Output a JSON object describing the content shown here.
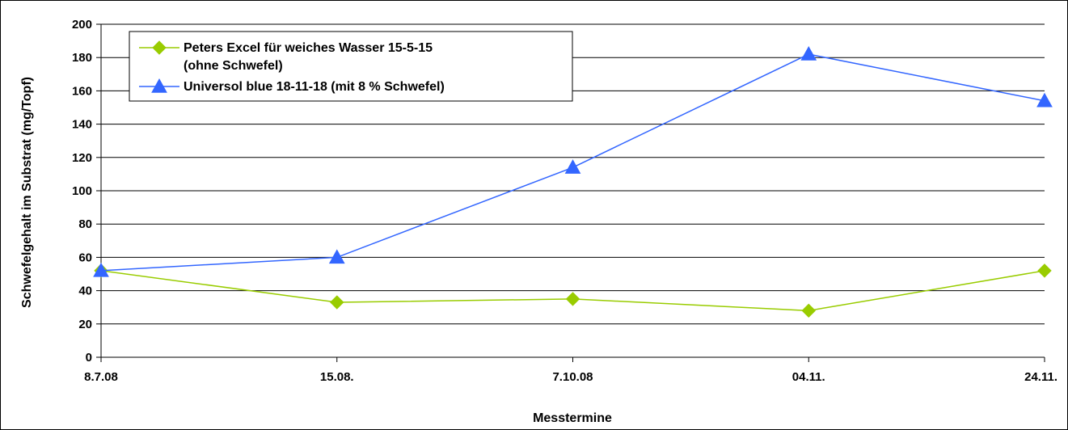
{
  "chart_data": {
    "type": "line",
    "categories": [
      "8.7.08",
      "15.08.",
      "7.10.08",
      "04.11.",
      "24.11."
    ],
    "series": [
      {
        "name": "Peters Excel für weiches Wasser 15-5-15 (ohne Schwefel)",
        "name_lines": [
          "Peters Excel für weiches Wasser 15-5-15",
          "(ohne Schwefel)"
        ],
        "values": [
          52,
          33,
          35,
          28,
          52
        ],
        "color": "#99cc00",
        "marker": "diamond"
      },
      {
        "name": "Universol blue 18-11-18 (mit 8 % Schwefel)",
        "name_lines": [
          "Universol blue 18-11-18 (mit 8 % Schwefel)"
        ],
        "values": [
          52,
          60,
          114,
          182,
          154
        ],
        "color": "#3366ff",
        "marker": "triangle"
      }
    ],
    "xlabel": "Messtermine",
    "ylabel": "Schwefelgehalt im Substrat (mg/Topf)",
    "ylim": [
      0,
      200
    ],
    "yticks": [
      0,
      20,
      40,
      60,
      80,
      100,
      120,
      140,
      160,
      180,
      200
    ],
    "grid": true,
    "legend_position": "top-left"
  }
}
